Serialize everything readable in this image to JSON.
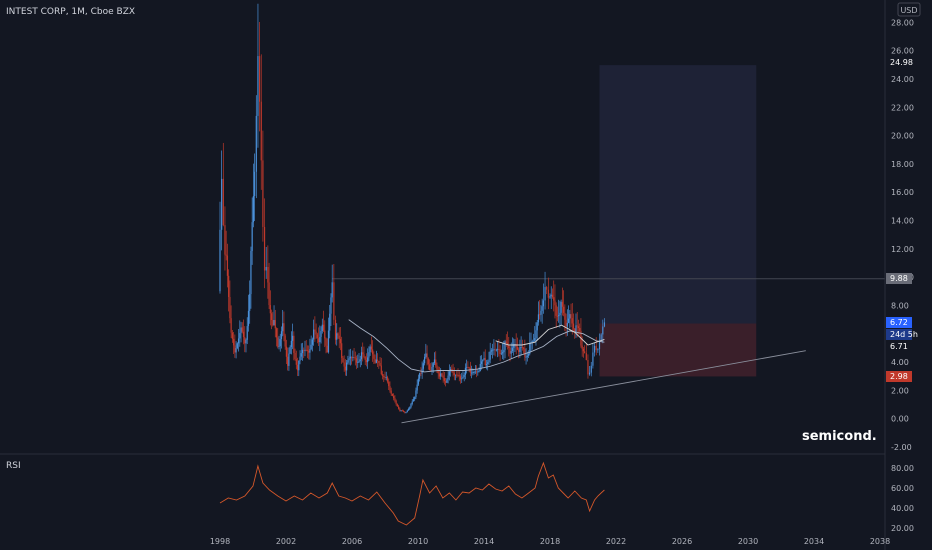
{
  "header": {
    "symbol": "INTEST CORP, 1M, Cboe BZX",
    "currency": "USD"
  },
  "indicator": {
    "name": "RSI"
  },
  "annotation": "semicond.",
  "colors": {
    "background": "#131722",
    "up": "#4a90d9",
    "down": "#c0392b",
    "ma1": "#d4d4d4",
    "ma2": "#a8b3c6",
    "rsi": "#d4572a",
    "target_box": "#1e2236",
    "stop_box": "#3a1f2a",
    "trend": "#8a8f9c"
  },
  "price_tags": [
    {
      "value": "24.98",
      "style": "dark"
    },
    {
      "value": "9.88",
      "style": "gray"
    },
    {
      "value": "6.72",
      "style": "blue"
    },
    {
      "value": "24d 5h",
      "style": "blue-dark"
    },
    {
      "value": "6.71",
      "style": "dark"
    },
    {
      "value": "2.98",
      "style": "red"
    }
  ],
  "chart_data": {
    "type": "candlestick",
    "x_tick_labels": [
      "1998",
      "2002",
      "2006",
      "2010",
      "2014",
      "2018",
      "2022",
      "2026",
      "2030",
      "2034",
      "2038"
    ],
    "price_axis": {
      "tick_labels": [
        "28.00",
        "26.00",
        "24.00",
        "22.00",
        "20.00",
        "18.00",
        "16.00",
        "14.00",
        "12.00",
        "10.00",
        "8.00",
        "6.00",
        "4.00",
        "2.00",
        "0.00",
        "-2.00"
      ],
      "range": [
        -2,
        28
      ]
    },
    "rsi_axis": {
      "tick_labels": [
        "80.00",
        "60.00",
        "40.00",
        "20.00"
      ],
      "range": [
        18,
        88
      ]
    },
    "price_path": [
      [
        1997.9,
        9
      ],
      [
        1998.1,
        17
      ],
      [
        1998.3,
        12
      ],
      [
        1998.6,
        7
      ],
      [
        1998.9,
        4.5
      ],
      [
        1999.2,
        6.5
      ],
      [
        1999.5,
        5
      ],
      [
        1999.8,
        9
      ],
      [
        2000.1,
        18
      ],
      [
        2000.3,
        25
      ],
      [
        2000.5,
        18
      ],
      [
        2000.7,
        11
      ],
      [
        2000.9,
        9
      ],
      [
        2001.2,
        7
      ],
      [
        2001.5,
        5
      ],
      [
        2001.8,
        6.5
      ],
      [
        2002.1,
        4
      ],
      [
        2002.4,
        5.5
      ],
      [
        2002.7,
        3.5
      ],
      [
        2003.0,
        5
      ],
      [
        2003.3,
        4.5
      ],
      [
        2003.6,
        6
      ],
      [
        2003.9,
        5.5
      ],
      [
        2004.2,
        6.5
      ],
      [
        2004.5,
        5
      ],
      [
        2004.8,
        9
      ],
      [
        2005.0,
        6
      ],
      [
        2005.3,
        5
      ],
      [
        2005.6,
        3.5
      ],
      [
        2005.9,
        4.5
      ],
      [
        2006.2,
        4
      ],
      [
        2006.5,
        4.5
      ],
      [
        2006.8,
        4
      ],
      [
        2007.1,
        5
      ],
      [
        2007.4,
        4.2
      ],
      [
        2007.7,
        3.5
      ],
      [
        2008.0,
        3
      ],
      [
        2008.3,
        2
      ],
      [
        2008.6,
        1.2
      ],
      [
        2008.9,
        0.6
      ],
      [
        2009.2,
        0.4
      ],
      [
        2009.5,
        0.8
      ],
      [
        2009.8,
        1.6
      ],
      [
        2010.1,
        3
      ],
      [
        2010.4,
        4.6
      ],
      [
        2010.7,
        3.4
      ],
      [
        2011.0,
        4
      ],
      [
        2011.3,
        3.2
      ],
      [
        2011.6,
        2.5
      ],
      [
        2011.9,
        3.4
      ],
      [
        2012.2,
        3.2
      ],
      [
        2012.5,
        2.8
      ],
      [
        2012.8,
        3.3
      ],
      [
        2013.1,
        3.5
      ],
      [
        2013.4,
        3.2
      ],
      [
        2013.7,
        3.6
      ],
      [
        2014.0,
        4
      ],
      [
        2014.3,
        4.3
      ],
      [
        2014.6,
        5
      ],
      [
        2014.9,
        4.6
      ],
      [
        2015.2,
        5.2
      ],
      [
        2015.5,
        4.8
      ],
      [
        2015.8,
        5.2
      ],
      [
        2016.1,
        5
      ],
      [
        2016.4,
        4.6
      ],
      [
        2016.7,
        4.8
      ],
      [
        2017.0,
        5.5
      ],
      [
        2017.3,
        7
      ],
      [
        2017.6,
        9
      ],
      [
        2017.8,
        8.5
      ],
      [
        2018.0,
        9.2
      ],
      [
        2018.3,
        7.5
      ],
      [
        2018.6,
        8
      ],
      [
        2018.9,
        6.8
      ],
      [
        2019.2,
        7.2
      ],
      [
        2019.5,
        6.5
      ],
      [
        2019.8,
        5.8
      ],
      [
        2020.1,
        4.8
      ],
      [
        2020.3,
        3
      ],
      [
        2020.5,
        4
      ],
      [
        2020.7,
        4.8
      ],
      [
        2020.9,
        5.2
      ],
      [
        2021.1,
        5.8
      ],
      [
        2021.3,
        6.71
      ]
    ],
    "ma_slow": [
      [
        2005.8,
        7
      ],
      [
        2006.5,
        6.4
      ],
      [
        2007.3,
        5.8
      ],
      [
        2008.1,
        5
      ],
      [
        2008.8,
        4.2
      ],
      [
        2009.6,
        3.5
      ],
      [
        2010.4,
        3.3
      ],
      [
        2011.2,
        3.4
      ],
      [
        2012.0,
        3.4
      ],
      [
        2012.8,
        3.4
      ],
      [
        2013.6,
        3.5
      ],
      [
        2014.4,
        3.7
      ],
      [
        2015.2,
        4
      ],
      [
        2016.0,
        4.4
      ],
      [
        2016.8,
        4.7
      ],
      [
        2017.6,
        5.1
      ],
      [
        2018.4,
        5.8
      ],
      [
        2019.2,
        6.2
      ],
      [
        2020.0,
        6
      ],
      [
        2020.8,
        5.5
      ],
      [
        2021.3,
        5.4
      ]
    ],
    "ma_fast": [
      [
        2014.7,
        5.5
      ],
      [
        2015.5,
        5.2
      ],
      [
        2016.3,
        5.2
      ],
      [
        2017.1,
        5.4
      ],
      [
        2017.9,
        6.3
      ],
      [
        2018.7,
        6.6
      ],
      [
        2019.5,
        6.1
      ],
      [
        2020.3,
        5.2
      ],
      [
        2020.8,
        5.4
      ],
      [
        2021.3,
        5.6
      ]
    ],
    "reference_level": 9.88,
    "position_box": {
      "x_start": 2021.0,
      "x_end": 2030.5,
      "entry": 6.72,
      "target": 24.98,
      "stop": 2.98
    },
    "trend_line": [
      [
        2009.0,
        -0.3
      ],
      [
        2033.5,
        4.8
      ]
    ],
    "rsi": [
      [
        1998.0,
        45
      ],
      [
        1998.5,
        50
      ],
      [
        1999.0,
        48
      ],
      [
        1999.5,
        52
      ],
      [
        2000.0,
        62
      ],
      [
        2000.3,
        82
      ],
      [
        2000.6,
        65
      ],
      [
        2001.0,
        58
      ],
      [
        2001.5,
        52
      ],
      [
        2002.0,
        47
      ],
      [
        2002.5,
        52
      ],
      [
        2003.0,
        48
      ],
      [
        2003.5,
        55
      ],
      [
        2004.0,
        50
      ],
      [
        2004.5,
        55
      ],
      [
        2004.8,
        65
      ],
      [
        2005.2,
        52
      ],
      [
        2005.6,
        50
      ],
      [
        2006.0,
        47
      ],
      [
        2006.5,
        52
      ],
      [
        2007.0,
        48
      ],
      [
        2007.5,
        56
      ],
      [
        2008.0,
        45
      ],
      [
        2008.5,
        35
      ],
      [
        2008.8,
        27
      ],
      [
        2009.3,
        23
      ],
      [
        2009.8,
        30
      ],
      [
        2010.1,
        52
      ],
      [
        2010.3,
        68
      ],
      [
        2010.7,
        55
      ],
      [
        2011.1,
        62
      ],
      [
        2011.5,
        50
      ],
      [
        2011.9,
        55
      ],
      [
        2012.3,
        48
      ],
      [
        2012.7,
        56
      ],
      [
        2013.1,
        55
      ],
      [
        2013.5,
        60
      ],
      [
        2013.9,
        58
      ],
      [
        2014.3,
        64
      ],
      [
        2014.7,
        59
      ],
      [
        2015.1,
        57
      ],
      [
        2015.5,
        62
      ],
      [
        2015.9,
        54
      ],
      [
        2016.3,
        50
      ],
      [
        2016.7,
        55
      ],
      [
        2017.1,
        60
      ],
      [
        2017.3,
        72
      ],
      [
        2017.6,
        85
      ],
      [
        2017.9,
        70
      ],
      [
        2018.2,
        73
      ],
      [
        2018.5,
        60
      ],
      [
        2018.8,
        55
      ],
      [
        2019.1,
        50
      ],
      [
        2019.5,
        57
      ],
      [
        2019.9,
        50
      ],
      [
        2020.2,
        48
      ],
      [
        2020.4,
        37
      ],
      [
        2020.7,
        48
      ],
      [
        2020.9,
        52
      ],
      [
        2021.1,
        55
      ],
      [
        2021.3,
        58
      ]
    ]
  }
}
